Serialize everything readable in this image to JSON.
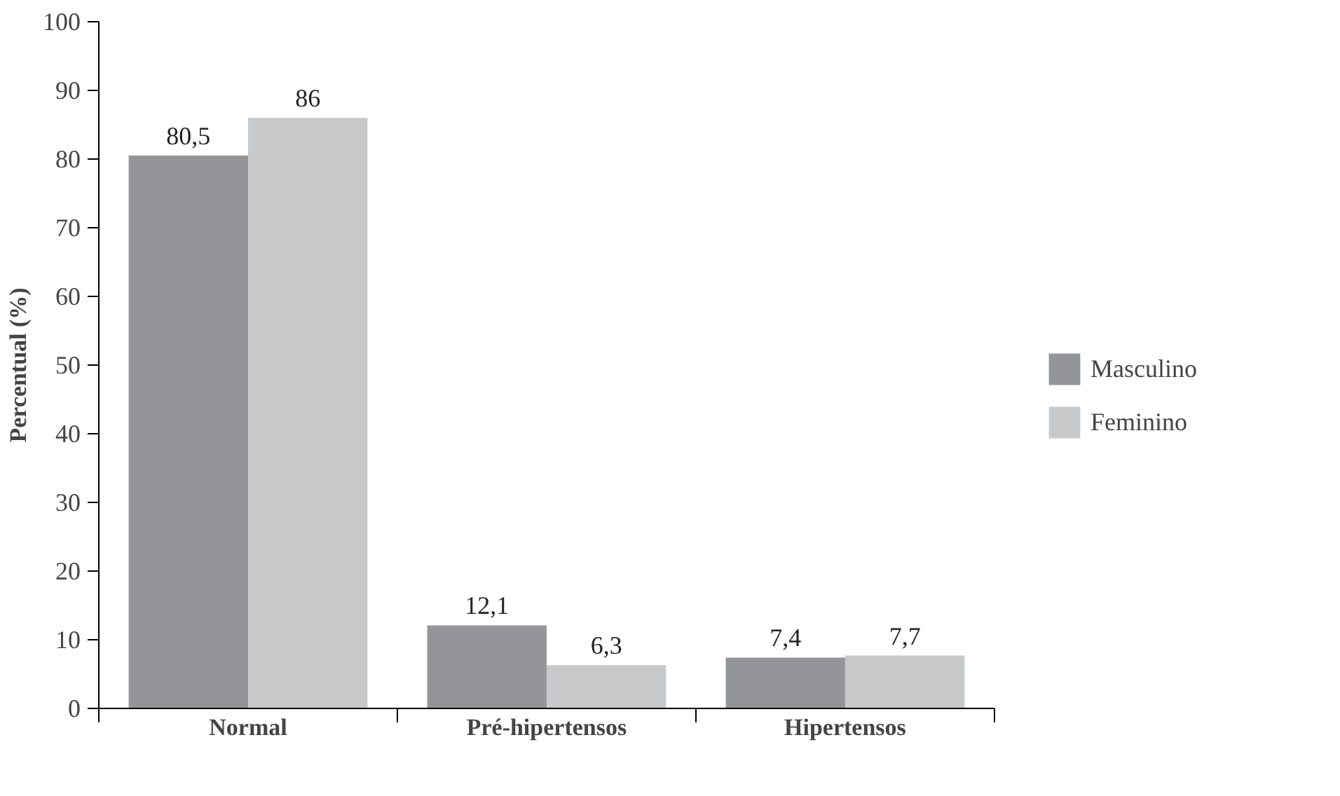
{
  "chart_data": {
    "type": "bar",
    "ylabel": "Percentual (%)",
    "categories": [
      "Normal",
      "Pré-hipertensos",
      "Hipertensos"
    ],
    "series": [
      {
        "name": "Masculino",
        "color": "#939598",
        "values": [
          80.5,
          12.1,
          7.4
        ],
        "value_labels": [
          "80,5",
          "12,1",
          "7,4"
        ]
      },
      {
        "name": "Feminino",
        "color": "#c8c9cb",
        "values": [
          86,
          6.3,
          7.7
        ],
        "value_labels": [
          "86",
          "6,3",
          "7,7"
        ]
      }
    ],
    "ylim": [
      0,
      100
    ],
    "yticks": [
      0,
      10,
      20,
      30,
      40,
      50,
      60,
      70,
      80,
      90,
      100
    ],
    "grid": false,
    "legend": "right"
  }
}
